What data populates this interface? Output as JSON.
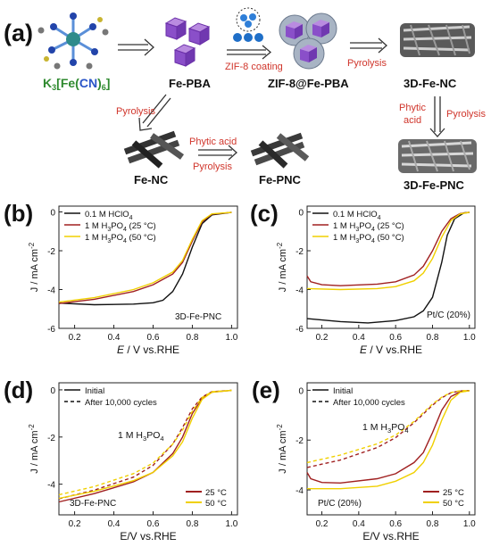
{
  "scheme": {
    "panel_label": "(a)",
    "precursor_formula": {
      "k": "K",
      "k_sub": "3",
      "lb": "[",
      "fe": "Fe",
      "lp": "(",
      "cn": "CN",
      "rp": ")",
      "sub6": "6",
      "rb": "]"
    },
    "fe_pba": "Fe-PBA",
    "coating_step": "ZIF-8 coating",
    "zif_fepba": "ZIF-8@Fe-PBA",
    "pyrolysis_1": "Pyrolysis",
    "product_3dfenc": "3D-Fe-NC",
    "pyrolysis_down_left": "Pyrolysis",
    "fe_nc": "Fe-NC",
    "phytic_acid_mid": "Phytic acid",
    "pyrolysis_mid": "Pyrolysis",
    "fe_pnc": "Fe-PNC",
    "phytic_right_1": "Phytic",
    "phytic_right_2": "acid",
    "pyrolysis_right": "Pyrolysis",
    "product_3dfepnc": "3D-Fe-PNC",
    "colors": {
      "label_red": "#d0352b",
      "formula_green": "#2f8a2f",
      "formula_blue": "#2a55c8",
      "cube": "#8a4fc9",
      "arrow": "#333333"
    }
  },
  "panels": {
    "b": {
      "label": "(b)"
    },
    "c": {
      "label": "(c)"
    },
    "d": {
      "label": "(d)"
    },
    "e": {
      "label": "(e)"
    }
  },
  "chart_data": [
    {
      "id": "b",
      "type": "line",
      "xlabel": {
        "italic": "E",
        "rest": " / V vs.RHE"
      },
      "ylabel": {
        "main": "J / mA cm",
        "sup": "-2"
      },
      "xlim": [
        0.12,
        1.03
      ],
      "ylim": [
        -6,
        0.3
      ],
      "xticks": [
        "0.2",
        "0.4",
        "0.6",
        "0.8",
        "1.0"
      ],
      "yticks": [
        "0",
        "-2",
        "-4",
        "-6"
      ],
      "xtick_values": [
        0.2,
        0.4,
        0.6,
        0.8,
        1.0
      ],
      "ytick_values": [
        0,
        -2,
        -4,
        -6
      ],
      "legend": {
        "items": [
          {
            "label": "0.1 M HClO",
            "sub": "4",
            "tail": "",
            "color": "#111111",
            "dash": false
          },
          {
            "label": "1 M H",
            "sub": "3",
            "mid": "PO",
            "sub2": "4",
            "tail": " (25 °C)",
            "color": "#a02020",
            "dash": false
          },
          {
            "label": "1 M H",
            "sub": "3",
            "mid": "PO",
            "sub2": "4",
            "tail": " (50 °C)",
            "color": "#f0d000",
            "dash": false
          }
        ]
      },
      "annotation": {
        "text": "3D-Fe-PNC"
      },
      "series": [
        {
          "name": "0.1 M HClO4",
          "color": "#111111",
          "dash": false,
          "points": [
            [
              0.12,
              -4.7
            ],
            [
              0.3,
              -4.78
            ],
            [
              0.5,
              -4.75
            ],
            [
              0.6,
              -4.68
            ],
            [
              0.65,
              -4.55
            ],
            [
              0.7,
              -4.1
            ],
            [
              0.75,
              -3.2
            ],
            [
              0.8,
              -1.8
            ],
            [
              0.85,
              -0.6
            ],
            [
              0.9,
              -0.15
            ],
            [
              1.0,
              -0.02
            ]
          ]
        },
        {
          "name": "1 M H3PO4 (25 °C)",
          "color": "#a02020",
          "dash": false,
          "points": [
            [
              0.12,
              -4.72
            ],
            [
              0.3,
              -4.5
            ],
            [
              0.5,
              -4.1
            ],
            [
              0.6,
              -3.75
            ],
            [
              0.7,
              -3.2
            ],
            [
              0.75,
              -2.6
            ],
            [
              0.8,
              -1.5
            ],
            [
              0.85,
              -0.5
            ],
            [
              0.9,
              -0.12
            ],
            [
              1.0,
              -0.02
            ]
          ]
        },
        {
          "name": "1 M H3PO4 (50 °C)",
          "color": "#f0d000",
          "dash": false,
          "points": [
            [
              0.12,
              -4.65
            ],
            [
              0.3,
              -4.42
            ],
            [
              0.5,
              -4.0
            ],
            [
              0.6,
              -3.65
            ],
            [
              0.7,
              -3.1
            ],
            [
              0.75,
              -2.5
            ],
            [
              0.8,
              -1.4
            ],
            [
              0.85,
              -0.45
            ],
            [
              0.9,
              -0.1
            ],
            [
              1.0,
              -0.02
            ]
          ]
        }
      ]
    },
    {
      "id": "c",
      "type": "line",
      "xlabel": {
        "italic": "E",
        "rest": " / V vs.RHE"
      },
      "ylabel": {
        "main": "J / mA cm",
        "sup": "-2"
      },
      "xlim": [
        0.12,
        1.03
      ],
      "ylim": [
        -6,
        0.3
      ],
      "xticks": [
        "0.2",
        "0.4",
        "0.6",
        "0.8",
        "1.0"
      ],
      "yticks": [
        "0",
        "-2",
        "-4",
        "-6"
      ],
      "xtick_values": [
        0.2,
        0.4,
        0.6,
        0.8,
        1.0
      ],
      "ytick_values": [
        0,
        -2,
        -4,
        -6
      ],
      "legend": {
        "items": [
          {
            "label": "0.1 M HClO",
            "sub": "4",
            "tail": "",
            "color": "#111111",
            "dash": false
          },
          {
            "label": "1 M H",
            "sub": "3",
            "mid": "PO",
            "sub2": "4",
            "tail": " (25 °C)",
            "color": "#a02020",
            "dash": false
          },
          {
            "label": "1 M H",
            "sub": "3",
            "mid": "PO",
            "sub2": "4",
            "tail": " (50 °C)",
            "color": "#f0d000",
            "dash": false
          }
        ]
      },
      "annotation": {
        "text": "Pt/C (20%)"
      },
      "series": [
        {
          "name": "0.1 M HClO4",
          "color": "#111111",
          "dash": false,
          "points": [
            [
              0.12,
              -5.5
            ],
            [
              0.3,
              -5.65
            ],
            [
              0.45,
              -5.72
            ],
            [
              0.6,
              -5.6
            ],
            [
              0.7,
              -5.4
            ],
            [
              0.75,
              -5.1
            ],
            [
              0.8,
              -4.4
            ],
            [
              0.85,
              -2.6
            ],
            [
              0.88,
              -1.2
            ],
            [
              0.92,
              -0.35
            ],
            [
              0.97,
              -0.05
            ],
            [
              1.0,
              -0.02
            ]
          ]
        },
        {
          "name": "1 M H3PO4 (25 °C)",
          "color": "#a02020",
          "dash": false,
          "points": [
            [
              0.12,
              -3.3
            ],
            [
              0.14,
              -3.6
            ],
            [
              0.2,
              -3.75
            ],
            [
              0.3,
              -3.8
            ],
            [
              0.5,
              -3.72
            ],
            [
              0.6,
              -3.6
            ],
            [
              0.7,
              -3.25
            ],
            [
              0.75,
              -2.8
            ],
            [
              0.8,
              -2.0
            ],
            [
              0.85,
              -1.0
            ],
            [
              0.9,
              -0.35
            ],
            [
              0.95,
              -0.08
            ],
            [
              1.0,
              -0.02
            ]
          ]
        },
        {
          "name": "1 M H3PO4 (50 °C)",
          "color": "#f0d000",
          "dash": false,
          "points": [
            [
              0.12,
              -3.95
            ],
            [
              0.3,
              -4.0
            ],
            [
              0.5,
              -3.95
            ],
            [
              0.6,
              -3.85
            ],
            [
              0.7,
              -3.55
            ],
            [
              0.75,
              -3.15
            ],
            [
              0.8,
              -2.4
            ],
            [
              0.85,
              -1.3
            ],
            [
              0.9,
              -0.45
            ],
            [
              0.95,
              -0.1
            ],
            [
              1.0,
              -0.02
            ]
          ]
        }
      ]
    },
    {
      "id": "d",
      "type": "line",
      "xlabel": {
        "italic": "",
        "rest": "E/V vs.RHE"
      },
      "ylabel": {
        "main": "J / mA cm",
        "sup": "-2"
      },
      "xlim": [
        0.12,
        1.03
      ],
      "ylim": [
        -5.3,
        0.3
      ],
      "xticks": [
        "0.2",
        "0.4",
        "0.6",
        "0.8",
        "1.0"
      ],
      "yticks": [
        "0",
        "-2",
        "-4"
      ],
      "xtick_values": [
        0.2,
        0.4,
        0.6,
        0.8,
        1.0
      ],
      "ytick_values": [
        0,
        -2,
        -4
      ],
      "legend": {
        "items": [
          {
            "label": "Initial",
            "color": "#111111",
            "dash": false
          },
          {
            "label": "After 10,000 cycles",
            "color": "#111111",
            "dash": true
          }
        ]
      },
      "legend2": {
        "items": [
          {
            "label": "25 °C",
            "color": "#a02020"
          },
          {
            "label": "50 °C",
            "color": "#f0d000"
          }
        ]
      },
      "annotation": {
        "text": "3D-Fe-PNC"
      },
      "annotation2": {
        "a": "1 M H",
        "s1": "3",
        "b": "PO",
        "s2": "4"
      },
      "series": [
        {
          "name": "25 °C initial",
          "color": "#a02020",
          "dash": false,
          "points": [
            [
              0.12,
              -4.75
            ],
            [
              0.3,
              -4.4
            ],
            [
              0.5,
              -3.9
            ],
            [
              0.6,
              -3.5
            ],
            [
              0.7,
              -2.7
            ],
            [
              0.75,
              -2.0
            ],
            [
              0.8,
              -1.0
            ],
            [
              0.85,
              -0.35
            ],
            [
              0.9,
              -0.1
            ],
            [
              1.0,
              -0.02
            ]
          ]
        },
        {
          "name": "25 °C after 10,000 cycles",
          "color": "#a02020",
          "dash": true,
          "points": [
            [
              0.12,
              -4.62
            ],
            [
              0.3,
              -4.25
            ],
            [
              0.5,
              -3.7
            ],
            [
              0.6,
              -3.2
            ],
            [
              0.7,
              -2.3
            ],
            [
              0.75,
              -1.6
            ],
            [
              0.8,
              -0.8
            ],
            [
              0.85,
              -0.3
            ],
            [
              0.9,
              -0.08
            ],
            [
              1.0,
              -0.02
            ]
          ]
        },
        {
          "name": "50 °C initial",
          "color": "#f0d000",
          "dash": false,
          "points": [
            [
              0.12,
              -4.6
            ],
            [
              0.3,
              -4.3
            ],
            [
              0.5,
              -3.85
            ],
            [
              0.6,
              -3.5
            ],
            [
              0.7,
              -2.8
            ],
            [
              0.75,
              -2.2
            ],
            [
              0.8,
              -1.2
            ],
            [
              0.85,
              -0.4
            ],
            [
              0.9,
              -0.1
            ],
            [
              1.0,
              -0.02
            ]
          ]
        },
        {
          "name": "50 °C after 10,000 cycles",
          "color": "#f0d000",
          "dash": true,
          "points": [
            [
              0.12,
              -4.45
            ],
            [
              0.3,
              -4.1
            ],
            [
              0.5,
              -3.55
            ],
            [
              0.6,
              -3.1
            ],
            [
              0.7,
              -2.3
            ],
            [
              0.75,
              -1.7
            ],
            [
              0.8,
              -0.9
            ],
            [
              0.85,
              -0.32
            ],
            [
              0.9,
              -0.08
            ],
            [
              1.0,
              -0.02
            ]
          ]
        }
      ]
    },
    {
      "id": "e",
      "type": "line",
      "xlabel": {
        "italic": "",
        "rest": "E/V vs.RHE"
      },
      "ylabel": {
        "main": "J / mA cm",
        "sup": "-2"
      },
      "xlim": [
        0.12,
        1.03
      ],
      "ylim": [
        -5.0,
        0.3
      ],
      "xticks": [
        "0.2",
        "0.4",
        "0.6",
        "0.8",
        "1.0"
      ],
      "yticks": [
        "0",
        "-2",
        "-4"
      ],
      "xtick_values": [
        0.2,
        0.4,
        0.6,
        0.8,
        1.0
      ],
      "ytick_values": [
        0,
        -2,
        -4
      ],
      "legend": {
        "items": [
          {
            "label": "Initial",
            "color": "#111111",
            "dash": false
          },
          {
            "label": "After 10,000 cycles",
            "color": "#111111",
            "dash": true
          }
        ]
      },
      "legend2": {
        "items": [
          {
            "label": "25 °C",
            "color": "#a02020"
          },
          {
            "label": "50 °C",
            "color": "#f0d000"
          }
        ]
      },
      "annotation": {
        "text": "Pt/C (20%)"
      },
      "annotation2": {
        "a": "1 M H",
        "s1": "3",
        "b": "PO",
        "s2": "4"
      },
      "series": [
        {
          "name": "25 °C initial",
          "color": "#a02020",
          "dash": false,
          "points": [
            [
              0.12,
              -3.3
            ],
            [
              0.14,
              -3.55
            ],
            [
              0.2,
              -3.7
            ],
            [
              0.3,
              -3.72
            ],
            [
              0.5,
              -3.55
            ],
            [
              0.6,
              -3.35
            ],
            [
              0.7,
              -2.9
            ],
            [
              0.75,
              -2.5
            ],
            [
              0.8,
              -1.7
            ],
            [
              0.85,
              -0.8
            ],
            [
              0.9,
              -0.25
            ],
            [
              0.95,
              -0.06
            ],
            [
              1.0,
              -0.02
            ]
          ]
        },
        {
          "name": "25 °C after 10,000 cycles",
          "color": "#a02020",
          "dash": true,
          "points": [
            [
              0.12,
              -3.1
            ],
            [
              0.3,
              -2.8
            ],
            [
              0.5,
              -2.3
            ],
            [
              0.6,
              -1.9
            ],
            [
              0.7,
              -1.3
            ],
            [
              0.75,
              -0.95
            ],
            [
              0.8,
              -0.6
            ],
            [
              0.85,
              -0.3
            ],
            [
              0.9,
              -0.1
            ],
            [
              0.95,
              -0.03
            ],
            [
              1.0,
              -0.01
            ]
          ]
        },
        {
          "name": "50 °C initial",
          "color": "#f0d000",
          "dash": false,
          "points": [
            [
              0.12,
              -3.95
            ],
            [
              0.3,
              -3.95
            ],
            [
              0.5,
              -3.85
            ],
            [
              0.6,
              -3.65
            ],
            [
              0.7,
              -3.3
            ],
            [
              0.75,
              -2.9
            ],
            [
              0.8,
              -2.2
            ],
            [
              0.85,
              -1.2
            ],
            [
              0.9,
              -0.4
            ],
            [
              0.95,
              -0.08
            ],
            [
              1.0,
              -0.02
            ]
          ]
        },
        {
          "name": "50 °C after 10,000 cycles",
          "color": "#f0d000",
          "dash": true,
          "points": [
            [
              0.12,
              -2.9
            ],
            [
              0.3,
              -2.6
            ],
            [
              0.5,
              -2.15
            ],
            [
              0.6,
              -1.8
            ],
            [
              0.7,
              -1.25
            ],
            [
              0.75,
              -0.9
            ],
            [
              0.8,
              -0.55
            ],
            [
              0.85,
              -0.28
            ],
            [
              0.9,
              -0.09
            ],
            [
              0.95,
              -0.02
            ],
            [
              1.0,
              -0.01
            ]
          ]
        }
      ]
    }
  ]
}
